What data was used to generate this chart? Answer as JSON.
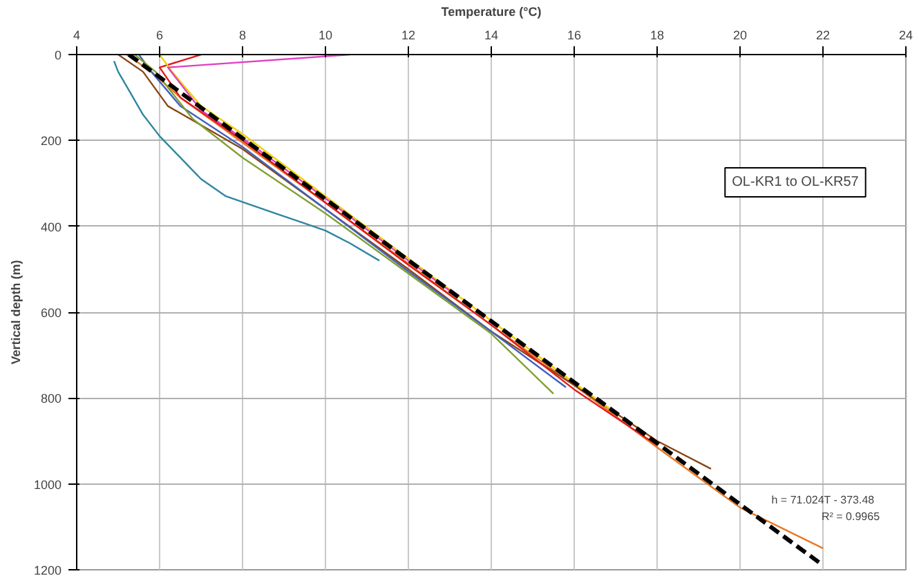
{
  "chart_data": {
    "type": "line",
    "xlabel": "Temperature (°C)",
    "ylabel": "Vertical depth (m)",
    "xlim": [
      4,
      24
    ],
    "xticks": [
      4,
      6,
      8,
      10,
      12,
      14,
      16,
      18,
      20,
      22,
      24
    ],
    "ylim": [
      1200,
      0
    ],
    "yticks": [
      0,
      200,
      400,
      600,
      800,
      1000,
      1200
    ],
    "grid": true,
    "marker": "none",
    "line_style": "solid",
    "annotations": [
      "OL-KR1 to OL-KR57",
      "h = 71.024T - 373.48",
      "R² = 0.9965"
    ],
    "series": [
      {
        "color": "#2e86a0",
        "x": [
          4.9,
          5.0,
          5.3,
          5.6,
          6.0,
          6.5,
          7.0,
          7.6,
          8.2,
          8.8,
          9.4,
          10.0,
          10.6,
          11.3
        ],
        "values": [
          15,
          40,
          90,
          140,
          190,
          240,
          290,
          330,
          350,
          370,
          390,
          410,
          440,
          480
        ]
      },
      {
        "color": "#e87722",
        "x": [
          5.2,
          5.8,
          6.5,
          8,
          10,
          12,
          14,
          16,
          18,
          20,
          22
        ],
        "values": [
          0,
          40,
          100,
          205,
          345,
          487,
          630,
          770,
          915,
          1055,
          1150
        ]
      },
      {
        "color": "#8b4513",
        "x": [
          5.0,
          5.6,
          6.2,
          8,
          10,
          12,
          14,
          16,
          18,
          19.3
        ],
        "values": [
          0,
          40,
          120,
          220,
          360,
          500,
          645,
          770,
          900,
          965
        ]
      },
      {
        "color": "#e31a1c",
        "x": [
          7.0,
          6.0,
          6.5,
          8,
          10,
          12,
          14,
          16,
          18
        ],
        "values": [
          0,
          30,
          100,
          200,
          345,
          490,
          630,
          780,
          910
        ]
      },
      {
        "color": "#f0d000",
        "x": [
          6.0,
          6.3,
          7,
          8,
          10,
          12,
          14,
          16,
          17
        ],
        "values": [
          0,
          40,
          120,
          185,
          330,
          475,
          620,
          765,
          835
        ]
      },
      {
        "color": "#4060c0",
        "x": [
          5.5,
          5.8,
          6.5,
          8,
          10,
          12,
          14,
          15.8
        ],
        "values": [
          0,
          40,
          120,
          215,
          360,
          505,
          645,
          775
        ]
      },
      {
        "color": "#e040c0",
        "x": [
          10.6,
          6.2,
          7,
          8,
          10,
          12,
          13
        ],
        "values": [
          0,
          30,
          130,
          195,
          335,
          480,
          550
        ]
      },
      {
        "color": "#80a030",
        "x": [
          5.4,
          5.9,
          6.8,
          8,
          10,
          12,
          14,
          15.5
        ],
        "values": [
          0,
          40,
          150,
          240,
          370,
          510,
          650,
          790
        ]
      },
      {
        "type": "line",
        "color": "#000000",
        "line_style": "dashed",
        "x": [
          5.26,
          21.95
        ],
        "values": [
          0,
          1186
        ]
      }
    ]
  }
}
